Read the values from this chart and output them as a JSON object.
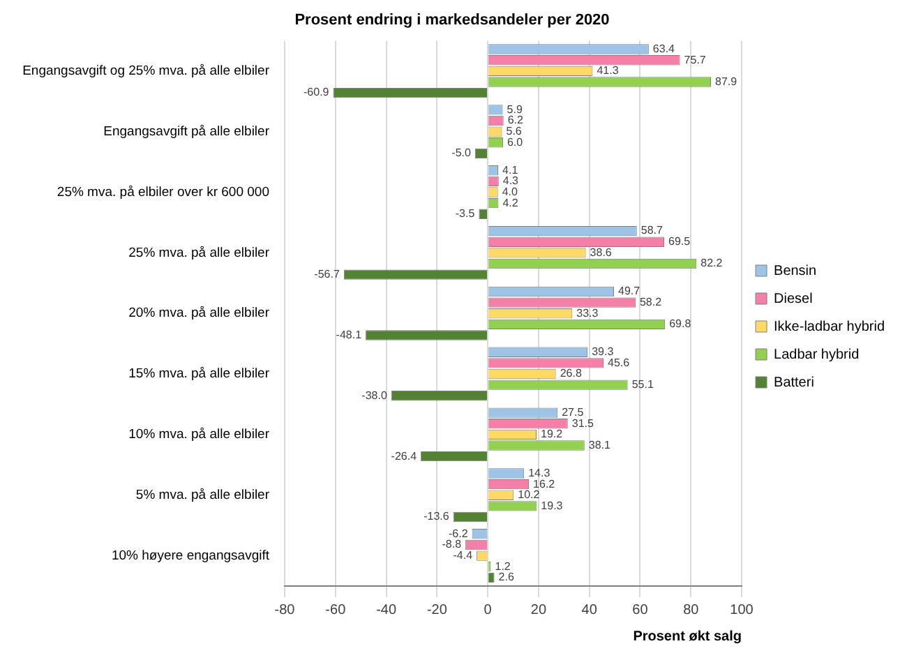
{
  "chart_data": {
    "type": "bar",
    "orientation": "horizontal",
    "title": "Prosent endring i markedsandeler per 2020",
    "xlabel": "Prosent økt salg",
    "categories": [
      "Engangsavgift og 25% mva. på alle elbiler",
      "Engangsavgift på alle elbiler",
      "25% mva. på elbiler over kr 600 000",
      "25% mva. på alle elbiler",
      "20% mva. på alle elbiler",
      "15% mva. på alle elbiler",
      "10% mva. på alle elbiler",
      "5% mva. på alle elbiler",
      "10% høyere engangsavgift"
    ],
    "series": [
      {
        "name": "Bensin",
        "color": "#9dc3e6",
        "values": [
          63.4,
          5.9,
          4.1,
          58.7,
          49.7,
          39.3,
          27.5,
          14.3,
          -6.2
        ],
        "value_labels": [
          "63.4",
          "5.9",
          "4.1",
          "58.7",
          "49.7",
          "39.3",
          "27.5",
          "14.3",
          "-6.2"
        ]
      },
      {
        "name": "Diesel",
        "color": "#f47fa8",
        "values": [
          75.7,
          6.2,
          4.3,
          69.5,
          58.2,
          45.6,
          31.5,
          16.2,
          -8.8
        ],
        "value_labels": [
          "75.7",
          "6.2",
          "4.3",
          "69.5",
          "58.2",
          "45.6",
          "31.5",
          "16.2",
          "-8.8"
        ]
      },
      {
        "name": "Ikke-ladbar hybrid",
        "color": "#ffd966",
        "values": [
          41.3,
          5.6,
          4.0,
          38.6,
          33.3,
          26.8,
          19.2,
          10.2,
          -4.4
        ],
        "value_labels": [
          "41.3",
          "5.6",
          "4.0",
          "38.6",
          "33.3",
          "26.8",
          "19.2",
          "10.2",
          "-4.4"
        ]
      },
      {
        "name": "Ladbar hybrid",
        "color": "#92d050",
        "values": [
          87.9,
          6.0,
          4.2,
          82.2,
          69.8,
          55.1,
          38.1,
          19.3,
          1.2
        ],
        "value_labels": [
          "87.9",
          "6.0",
          "4.2",
          "82.2",
          "69.8",
          "55.1",
          "38.1",
          "19.3",
          "1.2"
        ]
      },
      {
        "name": "Batteri",
        "color": "#548235",
        "values": [
          -60.9,
          -5.0,
          -3.5,
          -56.7,
          -48.1,
          -38.0,
          -26.4,
          -13.6,
          2.6
        ],
        "value_labels": [
          "-60.9",
          "-5.0",
          "-3.5",
          "-56.7",
          "-48.1",
          "-38.0",
          "-26.4",
          "-13.6",
          "2.6"
        ]
      }
    ],
    "xlim": [
      -80,
      100
    ],
    "xticks": [
      -80,
      -60,
      -40,
      -20,
      0,
      20,
      40,
      60,
      80,
      100
    ],
    "grid": "x",
    "legend": "right"
  }
}
